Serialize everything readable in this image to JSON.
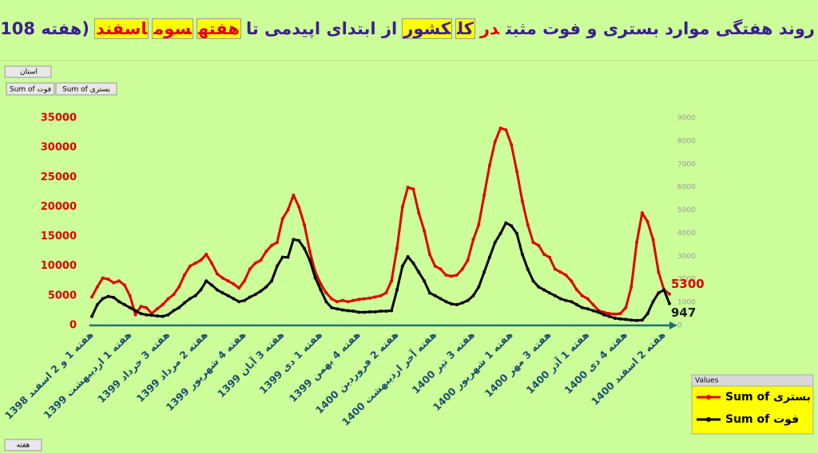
{
  "chart_data": {
    "type": "line",
    "title_parts": [
      {
        "text": "روند هفتگی موارد بستری و فوت مثبت",
        "color": "#3b1f8e"
      },
      {
        "text": "در",
        "color": "#e00000"
      },
      {
        "text": "کل",
        "color": "#3b1f8e",
        "background": "#ffff00"
      },
      {
        "text": "کشور",
        "color": "#3b1f8e",
        "background": "#ffff00"
      },
      {
        "text": "از ابتدای اپیدمی تا",
        "color": "#3b1f8e"
      },
      {
        "text": "هفته",
        "color": "#e00000",
        "background": "#ffff00"
      },
      {
        "text": "سوم",
        "color": "#e00000",
        "background": "#ffff00"
      },
      {
        "text": "اسفند",
        "color": "#e00000",
        "background": "#ffff00"
      },
      {
        "text": "(هفته 108)",
        "color": "#3b1f8e"
      }
    ],
    "ui": {
      "filter": "استان",
      "field_buttons": [
        "Sum of فوت",
        "Sum of بستری"
      ],
      "axis_field": "هفته"
    },
    "legend_title": "Values",
    "categories": [
      "هفته 1 و 2 اسفند 1398",
      null,
      null,
      null,
      null,
      null,
      null,
      "هفته 1 اردیبهشت 1399",
      null,
      null,
      null,
      null,
      null,
      null,
      "هفته 3 خرداد 1399",
      null,
      null,
      null,
      null,
      null,
      null,
      "هفته 2 مرداد 1399",
      null,
      null,
      null,
      null,
      null,
      null,
      "هفته 4 شهریور 1399",
      null,
      null,
      null,
      null,
      null,
      null,
      "هفته 3 آبان 1399",
      null,
      null,
      null,
      null,
      null,
      null,
      "هفته 1 دی 1399",
      null,
      null,
      null,
      null,
      null,
      null,
      "هفته 4 بهمن 1399",
      null,
      null,
      null,
      null,
      null,
      null,
      "هفته 2 فروردین 1400",
      null,
      null,
      null,
      null,
      null,
      null,
      "هفته آخر اردیبهشت 1400",
      null,
      null,
      null,
      null,
      null,
      null,
      "هفته 3 تیر 1400",
      null,
      null,
      null,
      null,
      null,
      null,
      "هفته 1 شهریور 1400",
      null,
      null,
      null,
      null,
      null,
      null,
      "هفته 3 مهر 1400",
      null,
      null,
      null,
      null,
      null,
      null,
      "هفته 1 آذر 1400",
      null,
      null,
      null,
      null,
      null,
      null,
      "هفته 4 دی 1400",
      null,
      null,
      null,
      null,
      null,
      null,
      "هفته 2 اسفند 1400",
      null
    ],
    "series": [
      {
        "name": "Sum of بستری",
        "color": "#e00000",
        "values": [
          4800,
          6500,
          8000,
          7800,
          7200,
          7500,
          6800,
          5000,
          1800,
          3200,
          3000,
          2000,
          2800,
          3500,
          4500,
          5200,
          6500,
          8500,
          10000,
          10500,
          11000,
          12000,
          10500,
          8700,
          8000,
          7500,
          7000,
          6300,
          7500,
          9500,
          10500,
          11000,
          12500,
          13500,
          14000,
          18000,
          19500,
          22000,
          20000,
          17000,
          12500,
          9000,
          7000,
          5500,
          4500,
          4000,
          4200,
          4000,
          4200,
          4400,
          4500,
          4600,
          4800,
          5000,
          5500,
          7500,
          13000,
          20000,
          23300,
          23000,
          19000,
          16000,
          12000,
          10000,
          9500,
          8500,
          8300,
          8500,
          9500,
          11000,
          14500,
          17000,
          22000,
          27000,
          31000,
          33300,
          33000,
          30500,
          26000,
          21000,
          17000,
          14000,
          13500,
          12000,
          11500,
          9500,
          9000,
          8500,
          7500,
          6000,
          5000,
          4500,
          3500,
          2500,
          2200,
          2000,
          1900,
          2000,
          3000,
          6500,
          14000,
          19000,
          17500,
          14500,
          9000,
          6000,
          5300
        ]
      },
      {
        "name": "Sum of فوت",
        "color": "#000000",
        "axis": "y2",
        "values": [
          390,
          900,
          1160,
          1260,
          1210,
          1030,
          900,
          770,
          640,
          510,
          460,
          440,
          410,
          390,
          460,
          640,
          770,
          980,
          1160,
          1290,
          1540,
          1930,
          1750,
          1540,
          1410,
          1290,
          1160,
          1030,
          1080,
          1230,
          1340,
          1490,
          1670,
          1930,
          2570,
          2960,
          2960,
          3730,
          3680,
          3340,
          2830,
          2060,
          1540,
          1030,
          770,
          720,
          670,
          640,
          620,
          570,
          570,
          590,
          590,
          620,
          620,
          640,
          1540,
          2570,
          2980,
          2700,
          2310,
          1930,
          1410,
          1290,
          1160,
          1030,
          930,
          900,
          980,
          1080,
          1290,
          1670,
          2310,
          2960,
          3600,
          3990,
          4450,
          4320,
          3990,
          3090,
          2440,
          1930,
          1670,
          1540,
          1410,
          1290,
          1160,
          1080,
          1030,
          900,
          770,
          720,
          640,
          570,
          460,
          390,
          310,
          280,
          260,
          230,
          210,
          230,
          510,
          1030,
          1410,
          1540,
          947
        ]
      }
    ],
    "ylim": [
      0,
      35000
    ],
    "yticks": [
      0,
      5000,
      10000,
      15000,
      20000,
      25000,
      30000,
      35000
    ],
    "y2lim": [
      0,
      9000
    ],
    "y2ticks": [
      0,
      1000,
      2000,
      3000,
      4000,
      5000,
      6000,
      7000,
      8000,
      9000
    ],
    "grid": false
  }
}
